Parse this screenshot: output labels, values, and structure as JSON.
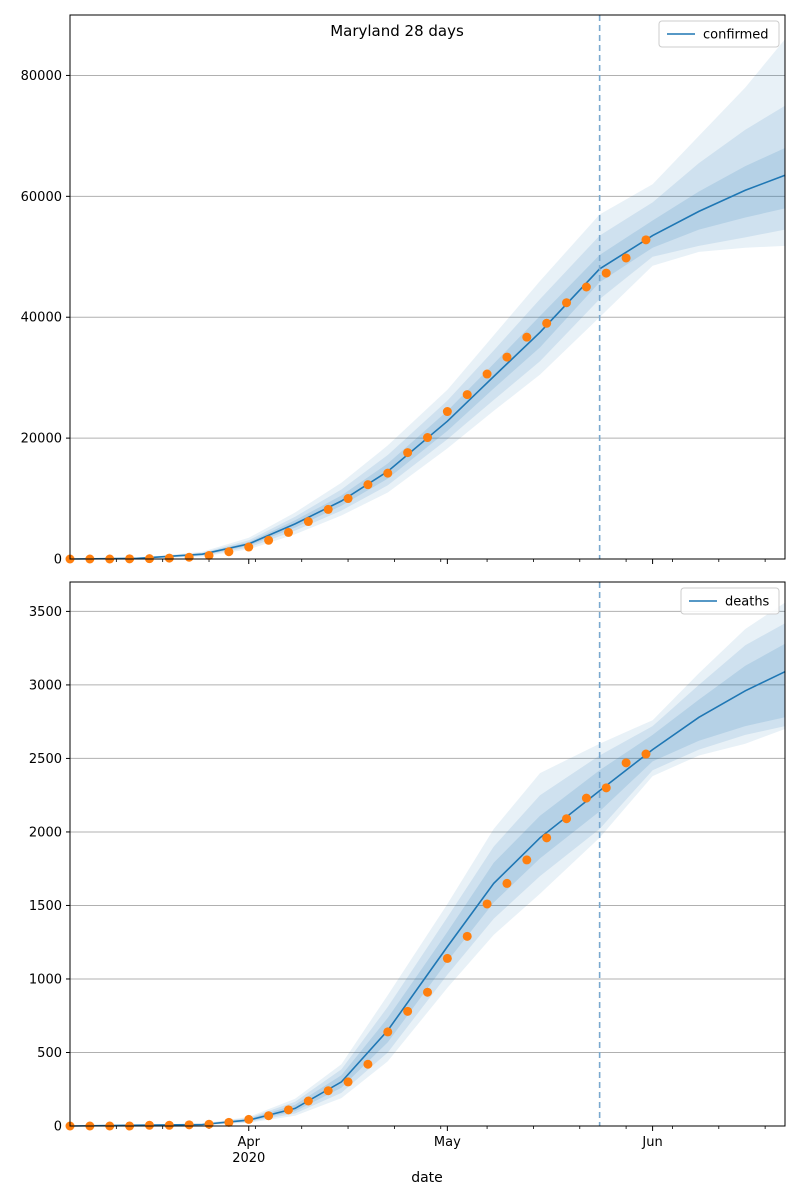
{
  "figure": {
    "title": "Maryland 28 days",
    "xlabel": "date"
  },
  "colors": {
    "model": "#1f77b4",
    "observed": "#ff7f0e",
    "grid": "#b0b0b0",
    "cutoff": "#7aa9cf"
  },
  "chart_data": [
    {
      "type": "line",
      "title": "Maryland 28 days",
      "legend": "confirmed",
      "legend_position": "top-right",
      "grid": "horizontal",
      "xlim": [
        "2020-03-05",
        "2020-06-21"
      ],
      "ylim": [
        0,
        90000
      ],
      "yticks": [
        0,
        20000,
        40000,
        60000,
        80000
      ],
      "xticks": [
        {
          "date": "2020-04-01",
          "label": "Apr",
          "sublabel": "2020"
        },
        {
          "date": "2020-05-01",
          "label": "May",
          "sublabel": ""
        },
        {
          "date": "2020-06-01",
          "label": "Jun",
          "sublabel": ""
        }
      ],
      "forecast_start": "2020-05-24",
      "model": {
        "name": "confirmed",
        "dates": [
          "2020-03-05",
          "2020-03-15",
          "2020-03-25",
          "2020-04-01",
          "2020-04-08",
          "2020-04-15",
          "2020-04-22",
          "2020-05-01",
          "2020-05-08",
          "2020-05-15",
          "2020-05-24",
          "2020-06-01",
          "2020-06-08",
          "2020-06-15",
          "2020-06-21"
        ],
        "median": [
          0,
          100,
          800,
          2500,
          5800,
          9600,
          14500,
          22800,
          30200,
          37500,
          48000,
          53500,
          57500,
          61000,
          63500
        ],
        "band_50": [
          [
            0,
            0
          ],
          [
            80,
            120
          ],
          [
            650,
            950
          ],
          [
            2200,
            2800
          ],
          [
            5200,
            6400
          ],
          [
            8800,
            10500
          ],
          [
            13300,
            15800
          ],
          [
            21200,
            24500
          ],
          [
            28200,
            32300
          ],
          [
            35000,
            40200
          ],
          [
            45800,
            50300
          ],
          [
            51500,
            56000
          ],
          [
            54500,
            60800
          ],
          [
            56500,
            65000
          ],
          [
            58000,
            68000
          ]
        ],
        "band_80": [
          [
            0,
            0
          ],
          [
            60,
            140
          ],
          [
            550,
            1050
          ],
          [
            1900,
            3100
          ],
          [
            4700,
            7000
          ],
          [
            8000,
            11500
          ],
          [
            12200,
            17200
          ],
          [
            19800,
            26200
          ],
          [
            26300,
            34500
          ],
          [
            32700,
            43000
          ],
          [
            43000,
            53500
          ],
          [
            50000,
            59000
          ],
          [
            51800,
            65500
          ],
          [
            53200,
            71000
          ],
          [
            54500,
            75000
          ]
        ],
        "band_95": [
          [
            0,
            0
          ],
          [
            40,
            160
          ],
          [
            400,
            1200
          ],
          [
            1600,
            3500
          ],
          [
            4100,
            7700
          ],
          [
            7200,
            12600
          ],
          [
            11000,
            18800
          ],
          [
            18300,
            28000
          ],
          [
            24500,
            37000
          ],
          [
            30500,
            46000
          ],
          [
            40000,
            57000
          ],
          [
            48500,
            62000
          ],
          [
            50800,
            70000
          ],
          [
            51500,
            78000
          ],
          [
            51800,
            86000
          ]
        ]
      },
      "observed": {
        "dates": [
          "2020-03-05",
          "2020-03-08",
          "2020-03-11",
          "2020-03-14",
          "2020-03-17",
          "2020-03-20",
          "2020-03-23",
          "2020-03-26",
          "2020-03-29",
          "2020-04-01",
          "2020-04-04",
          "2020-04-07",
          "2020-04-10",
          "2020-04-13",
          "2020-04-16",
          "2020-04-19",
          "2020-04-22",
          "2020-04-25",
          "2020-04-28",
          "2020-05-01",
          "2020-05-04",
          "2020-05-07",
          "2020-05-10",
          "2020-05-13",
          "2020-05-16",
          "2020-05-19",
          "2020-05-22",
          "2020-05-25",
          "2020-05-28",
          "2020-05-31"
        ],
        "values": [
          0,
          0,
          0,
          30,
          60,
          150,
          290,
          580,
          1200,
          1980,
          3100,
          4400,
          6200,
          8200,
          10000,
          12300,
          14200,
          17600,
          20100,
          24400,
          27200,
          30600,
          33400,
          36700,
          39000,
          42400,
          45000,
          47300,
          49800,
          52800
        ]
      }
    },
    {
      "type": "line",
      "title": "",
      "legend": "deaths",
      "legend_position": "top-right",
      "grid": "horizontal",
      "xlim": [
        "2020-03-05",
        "2020-06-21"
      ],
      "ylim": [
        0,
        3700
      ],
      "yticks": [
        0,
        500,
        1000,
        1500,
        2000,
        2500,
        3000,
        3500
      ],
      "xticks": [
        {
          "date": "2020-04-01",
          "label": "Apr",
          "sublabel": "2020"
        },
        {
          "date": "2020-05-01",
          "label": "May",
          "sublabel": ""
        },
        {
          "date": "2020-06-01",
          "label": "Jun",
          "sublabel": ""
        }
      ],
      "forecast_start": "2020-05-24",
      "model": {
        "name": "deaths",
        "dates": [
          "2020-03-05",
          "2020-03-25",
          "2020-04-01",
          "2020-04-08",
          "2020-04-15",
          "2020-04-22",
          "2020-05-01",
          "2020-05-08",
          "2020-05-15",
          "2020-05-24",
          "2020-06-01",
          "2020-06-08",
          "2020-06-15",
          "2020-06-21"
        ],
        "median": [
          0,
          10,
          40,
          120,
          300,
          650,
          1220,
          1650,
          1960,
          2280,
          2560,
          2780,
          2960,
          3090
        ],
        "band_50": [
          [
            0,
            0
          ],
          [
            8,
            12
          ],
          [
            33,
            48
          ],
          [
            100,
            145
          ],
          [
            260,
            345
          ],
          [
            570,
            735
          ],
          [
            1120,
            1320
          ],
          [
            1520,
            1790
          ],
          [
            1820,
            2110
          ],
          [
            2140,
            2420
          ],
          [
            2480,
            2660
          ],
          [
            2620,
            2900
          ],
          [
            2720,
            3130
          ],
          [
            2780,
            3280
          ]
        ],
        "band_80": [
          [
            0,
            0
          ],
          [
            6,
            14
          ],
          [
            27,
            55
          ],
          [
            85,
            165
          ],
          [
            225,
            385
          ],
          [
            500,
            810
          ],
          [
            1030,
            1420
          ],
          [
            1410,
            1900
          ],
          [
            1700,
            2250
          ],
          [
            2020,
            2520
          ],
          [
            2420,
            2720
          ],
          [
            2560,
            3000
          ],
          [
            2660,
            3270
          ],
          [
            2720,
            3420
          ]
        ],
        "band_95": [
          [
            0,
            0
          ],
          [
            4,
            16
          ],
          [
            22,
            62
          ],
          [
            70,
            185
          ],
          [
            190,
            420
          ],
          [
            440,
            890
          ],
          [
            940,
            1510
          ],
          [
            1300,
            2020
          ],
          [
            1580,
            2400
          ],
          [
            1960,
            2600
          ],
          [
            2380,
            2760
          ],
          [
            2520,
            3080
          ],
          [
            2600,
            3380
          ],
          [
            2700,
            3560
          ]
        ]
      },
      "observed": {
        "dates": [
          "2020-03-05",
          "2020-03-08",
          "2020-03-11",
          "2020-03-14",
          "2020-03-17",
          "2020-03-20",
          "2020-03-23",
          "2020-03-26",
          "2020-03-29",
          "2020-04-01",
          "2020-04-04",
          "2020-04-07",
          "2020-04-10",
          "2020-04-13",
          "2020-04-16",
          "2020-04-19",
          "2020-04-22",
          "2020-04-25",
          "2020-04-28",
          "2020-05-01",
          "2020-05-04",
          "2020-05-07",
          "2020-05-10",
          "2020-05-13",
          "2020-05-16",
          "2020-05-19",
          "2020-05-22",
          "2020-05-25",
          "2020-05-28",
          "2020-05-31"
        ],
        "values": [
          0,
          0,
          0,
          0,
          5,
          5,
          8,
          12,
          25,
          45,
          70,
          110,
          170,
          240,
          300,
          420,
          640,
          780,
          910,
          1140,
          1290,
          1510,
          1650,
          1810,
          1960,
          2090,
          2230,
          2300,
          2470,
          2530
        ]
      }
    }
  ]
}
